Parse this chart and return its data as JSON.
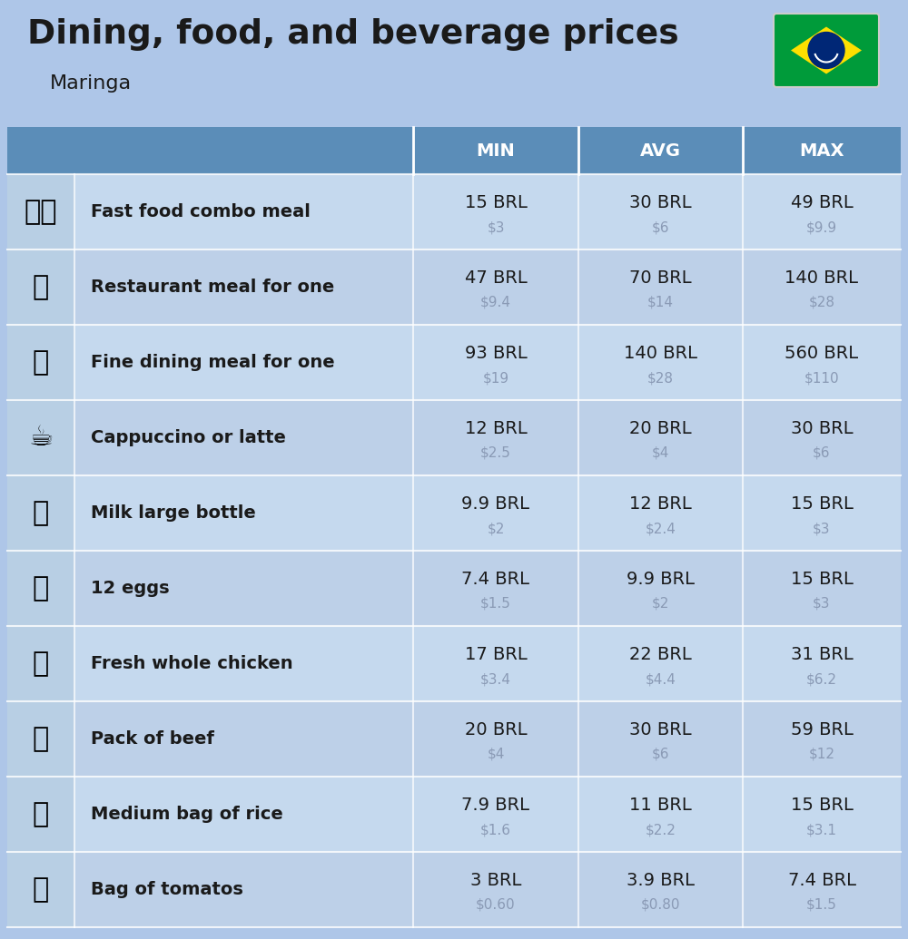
{
  "title": "Dining, food, and beverage prices",
  "subtitle": "Maringa",
  "bg_color": "#aec6e8",
  "header_color": "#5b8db8",
  "row_colors": [
    "#c5d9ee",
    "#bdd0e8"
  ],
  "icon_col_color": "#b8cfe4",
  "header_text_color": "#ffffff",
  "label_text_color": "#1a1a1a",
  "brl_text_color": "#1a1a1a",
  "usd_text_color": "#8a9ab5",
  "divider_color": "#ffffff",
  "col_headers": [
    "MIN",
    "AVG",
    "MAX"
  ],
  "rows": [
    {
      "label": "Fast food combo meal",
      "min_brl": "15 BRL",
      "min_usd": "$3",
      "avg_brl": "30 BRL",
      "avg_usd": "$6",
      "max_brl": "49 BRL",
      "max_usd": "$9.9"
    },
    {
      "label": "Restaurant meal for one",
      "min_brl": "47 BRL",
      "min_usd": "$9.4",
      "avg_brl": "70 BRL",
      "avg_usd": "$14",
      "max_brl": "140 BRL",
      "max_usd": "$28"
    },
    {
      "label": "Fine dining meal for one",
      "min_brl": "93 BRL",
      "min_usd": "$19",
      "avg_brl": "140 BRL",
      "avg_usd": "$28",
      "max_brl": "560 BRL",
      "max_usd": "$110"
    },
    {
      "label": "Cappuccino or latte",
      "min_brl": "12 BRL",
      "min_usd": "$2.5",
      "avg_brl": "20 BRL",
      "avg_usd": "$4",
      "max_brl": "30 BRL",
      "max_usd": "$6"
    },
    {
      "label": "Milk large bottle",
      "min_brl": "9.9 BRL",
      "min_usd": "$2",
      "avg_brl": "12 BRL",
      "avg_usd": "$2.4",
      "max_brl": "15 BRL",
      "max_usd": "$3"
    },
    {
      "label": "12 eggs",
      "min_brl": "7.4 BRL",
      "min_usd": "$1.5",
      "avg_brl": "9.9 BRL",
      "avg_usd": "$2",
      "max_brl": "15 BRL",
      "max_usd": "$3"
    },
    {
      "label": "Fresh whole chicken",
      "min_brl": "17 BRL",
      "min_usd": "$3.4",
      "avg_brl": "22 BRL",
      "avg_usd": "$4.4",
      "max_brl": "31 BRL",
      "max_usd": "$6.2"
    },
    {
      "label": "Pack of beef",
      "min_brl": "20 BRL",
      "min_usd": "$4",
      "avg_brl": "30 BRL",
      "avg_usd": "$6",
      "max_brl": "59 BRL",
      "max_usd": "$12"
    },
    {
      "label": "Medium bag of rice",
      "min_brl": "7.9 BRL",
      "min_usd": "$1.6",
      "avg_brl": "11 BRL",
      "avg_usd": "$2.2",
      "max_brl": "15 BRL",
      "max_usd": "$3.1"
    },
    {
      "label": "Bag of tomatos",
      "min_brl": "3 BRL",
      "min_usd": "$0.60",
      "avg_brl": "3.9 BRL",
      "avg_usd": "$0.80",
      "max_brl": "7.4 BRL",
      "max_usd": "$1.5"
    }
  ],
  "food_emojis": [
    "🍔🍼",
    "🍳",
    "🍽️",
    "☕",
    "🥛",
    "🥚",
    "🍗",
    "🥩",
    "🍚",
    "🍅"
  ],
  "title_fontsize": 27,
  "subtitle_fontsize": 16,
  "header_fontsize": 14,
  "label_fontsize": 14,
  "brl_fontsize": 14,
  "usd_fontsize": 11,
  "emoji_fontsize": 22
}
